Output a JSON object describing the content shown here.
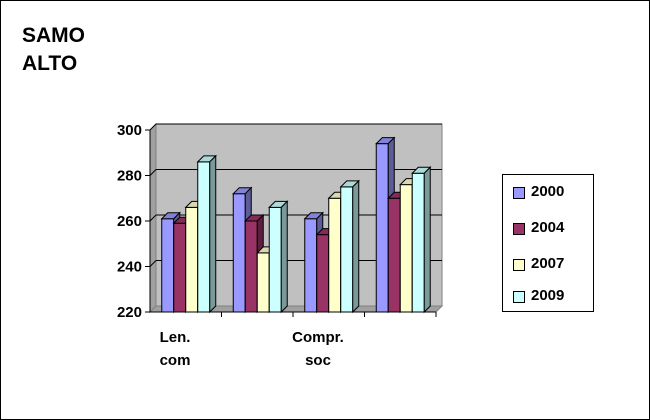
{
  "chart_data": {
    "type": "bar",
    "title": "SAMO\nALTO",
    "categories": [
      "Len. com",
      "",
      "Compr. soc",
      ""
    ],
    "category_labels": [
      [
        "Len.",
        "com"
      ],
      [],
      [
        "Compr.",
        "soc"
      ],
      []
    ],
    "ylim": [
      220,
      300
    ],
    "yticks": [
      "300",
      "280",
      "260",
      "240",
      "220"
    ],
    "grid": true,
    "legend_position": "right",
    "series": [
      {
        "name": "2000",
        "color": "#9999ff",
        "values": [
          261,
          272,
          261,
          294
        ]
      },
      {
        "name": "2004",
        "color": "#993366",
        "values": [
          259,
          260,
          254,
          270
        ]
      },
      {
        "name": "2007",
        "color": "#ffffcc",
        "values": [
          266,
          246,
          270,
          276
        ]
      },
      {
        "name": "2009",
        "color": "#ccffff",
        "values": [
          286,
          266,
          275,
          281
        ]
      }
    ]
  }
}
